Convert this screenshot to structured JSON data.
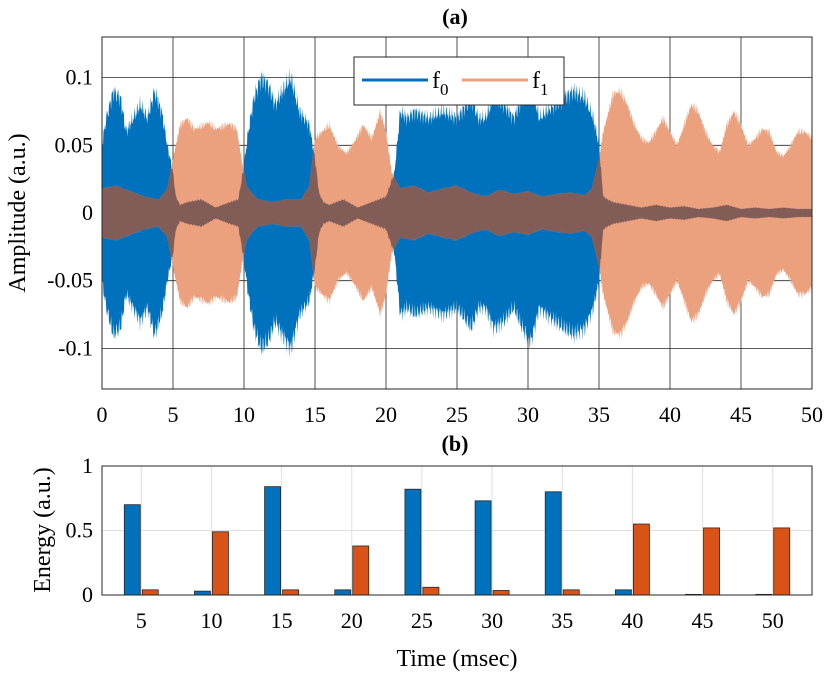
{
  "chart_data": [
    {
      "type": "line",
      "panel": "a",
      "title": "(a)",
      "xlabel": "",
      "ylabel": "Amplitude (a.u.)",
      "xlim": [
        0,
        50
      ],
      "ylim": [
        -0.13,
        0.13
      ],
      "xticks": [
        "0",
        "5",
        "10",
        "15",
        "20",
        "25",
        "30",
        "35",
        "40",
        "45",
        "50"
      ],
      "yticks": [
        {
          "value": 0.1,
          "label": "0.1"
        },
        {
          "value": 0.05,
          "label": "0.05"
        },
        {
          "value": 0,
          "label": "0"
        },
        {
          "value": -0.05,
          "label": "-0.05"
        },
        {
          "value": -0.1,
          "label": "-0.1"
        }
      ],
      "grid": true,
      "legend_position": "top-center",
      "series": [
        {
          "name": "f",
          "subscript": "0",
          "color": "#0072BD",
          "envelope_x": [
            0,
            0.3,
            0.8,
            1.3,
            1.7,
            2.2,
            2.7,
            3.2,
            3.7,
            4.2,
            4.6,
            5.0,
            5.2,
            5.5,
            6,
            7,
            8,
            9,
            9.6,
            10.0,
            10.3,
            10.7,
            11.2,
            11.7,
            12.2,
            12.7,
            13.3,
            13.9,
            14.6,
            15.0,
            15.3,
            15.6,
            16,
            17,
            18,
            19,
            20,
            20.6,
            21.0,
            21.5,
            22,
            23,
            24,
            25,
            26,
            26.5,
            27,
            27.6,
            28.3,
            29,
            29.6,
            30.2,
            30.8,
            31.3,
            31.9,
            32.5,
            33.2,
            34,
            34.6,
            35.0,
            35.3,
            35.6,
            36,
            37,
            38,
            39,
            40,
            41,
            42,
            43,
            44,
            45,
            46,
            47,
            48,
            49,
            50
          ],
          "envelope_y": [
            0.05,
            0.07,
            0.09,
            0.085,
            0.06,
            0.07,
            0.08,
            0.07,
            0.09,
            0.075,
            0.05,
            0.03,
            0.012,
            0.006,
            0.008,
            0.01,
            0.004,
            0.008,
            0.01,
            0.035,
            0.06,
            0.085,
            0.1,
            0.095,
            0.08,
            0.09,
            0.1,
            0.075,
            0.065,
            0.04,
            0.014,
            0.008,
            0.006,
            0.01,
            0.004,
            0.008,
            0.012,
            0.03,
            0.075,
            0.07,
            0.075,
            0.07,
            0.075,
            0.07,
            0.085,
            0.07,
            0.07,
            0.085,
            0.08,
            0.07,
            0.085,
            0.095,
            0.07,
            0.075,
            0.08,
            0.085,
            0.09,
            0.085,
            0.07,
            0.05,
            0.012,
            0.01,
            0.008,
            0.006,
            0.004,
            0.006,
            0.004,
            0.005,
            0.003,
            0.004,
            0.006,
            0.003,
            0.004,
            0.003,
            0.004,
            0.003,
            0.003
          ]
        },
        {
          "name": "f",
          "subscript": "1",
          "color": "#EBA07E",
          "envelope_x": [
            0,
            1,
            2,
            3,
            4,
            4.6,
            5.0,
            5.5,
            6,
            6.5,
            7,
            7.5,
            8,
            8.5,
            9,
            9.5,
            9.9,
            10.2,
            10.6,
            11,
            12,
            13,
            14,
            14.6,
            15.0,
            15.5,
            16,
            16.6,
            17.2,
            17.8,
            18.4,
            19,
            19.6,
            20.0,
            20.4,
            21,
            22,
            23,
            24,
            25,
            26,
            27,
            28,
            29,
            30,
            31,
            32,
            33,
            34,
            34.5,
            35.0,
            35.3,
            35.6,
            36,
            36.5,
            37,
            37.5,
            38,
            38.5,
            39,
            39.5,
            40,
            40.5,
            41,
            41.5,
            42,
            42.5,
            43,
            43.5,
            44,
            44.5,
            45,
            45.5,
            46,
            46.5,
            47,
            47.5,
            48,
            48.5,
            49,
            49.5,
            50
          ],
          "envelope_y": [
            0.018,
            0.02,
            0.016,
            0.012,
            0.01,
            0.018,
            0.04,
            0.065,
            0.07,
            0.062,
            0.064,
            0.067,
            0.062,
            0.064,
            0.066,
            0.062,
            0.035,
            0.02,
            0.014,
            0.01,
            0.008,
            0.01,
            0.01,
            0.02,
            0.055,
            0.06,
            0.065,
            0.05,
            0.044,
            0.053,
            0.065,
            0.055,
            0.075,
            0.06,
            0.03,
            0.018,
            0.02,
            0.015,
            0.018,
            0.02,
            0.015,
            0.012,
            0.017,
            0.014,
            0.016,
            0.012,
            0.014,
            0.015,
            0.013,
            0.018,
            0.04,
            0.06,
            0.072,
            0.088,
            0.09,
            0.08,
            0.065,
            0.055,
            0.052,
            0.06,
            0.07,
            0.06,
            0.05,
            0.065,
            0.08,
            0.075,
            0.06,
            0.05,
            0.045,
            0.065,
            0.075,
            0.065,
            0.05,
            0.055,
            0.062,
            0.06,
            0.045,
            0.042,
            0.05,
            0.06,
            0.06,
            0.055
          ]
        }
      ],
      "overlap_color": "#825C57"
    },
    {
      "type": "bar",
      "panel": "b",
      "title": "(b)",
      "xlabel": "Time (msec)",
      "ylabel": "Energy (a.u.)",
      "ylim": [
        0,
        1
      ],
      "yticks": [
        {
          "value": 1,
          "label": "1"
        },
        {
          "value": 0.5,
          "label": "0.5"
        },
        {
          "value": 0,
          "label": "0"
        }
      ],
      "grid": true,
      "categories": [
        "5",
        "10",
        "15",
        "20",
        "25",
        "30",
        "35",
        "40",
        "45",
        "50"
      ],
      "series": [
        {
          "name": "f0",
          "color": "#0072BD",
          "values": [
            0.7,
            0.03,
            0.84,
            0.04,
            0.82,
            0.73,
            0.8,
            0.04,
            0.005,
            0.005
          ]
        },
        {
          "name": "f1",
          "color": "#D95319",
          "values": [
            0.04,
            0.49,
            0.04,
            0.38,
            0.06,
            0.035,
            0.04,
            0.55,
            0.52,
            0.52
          ]
        }
      ]
    }
  ]
}
